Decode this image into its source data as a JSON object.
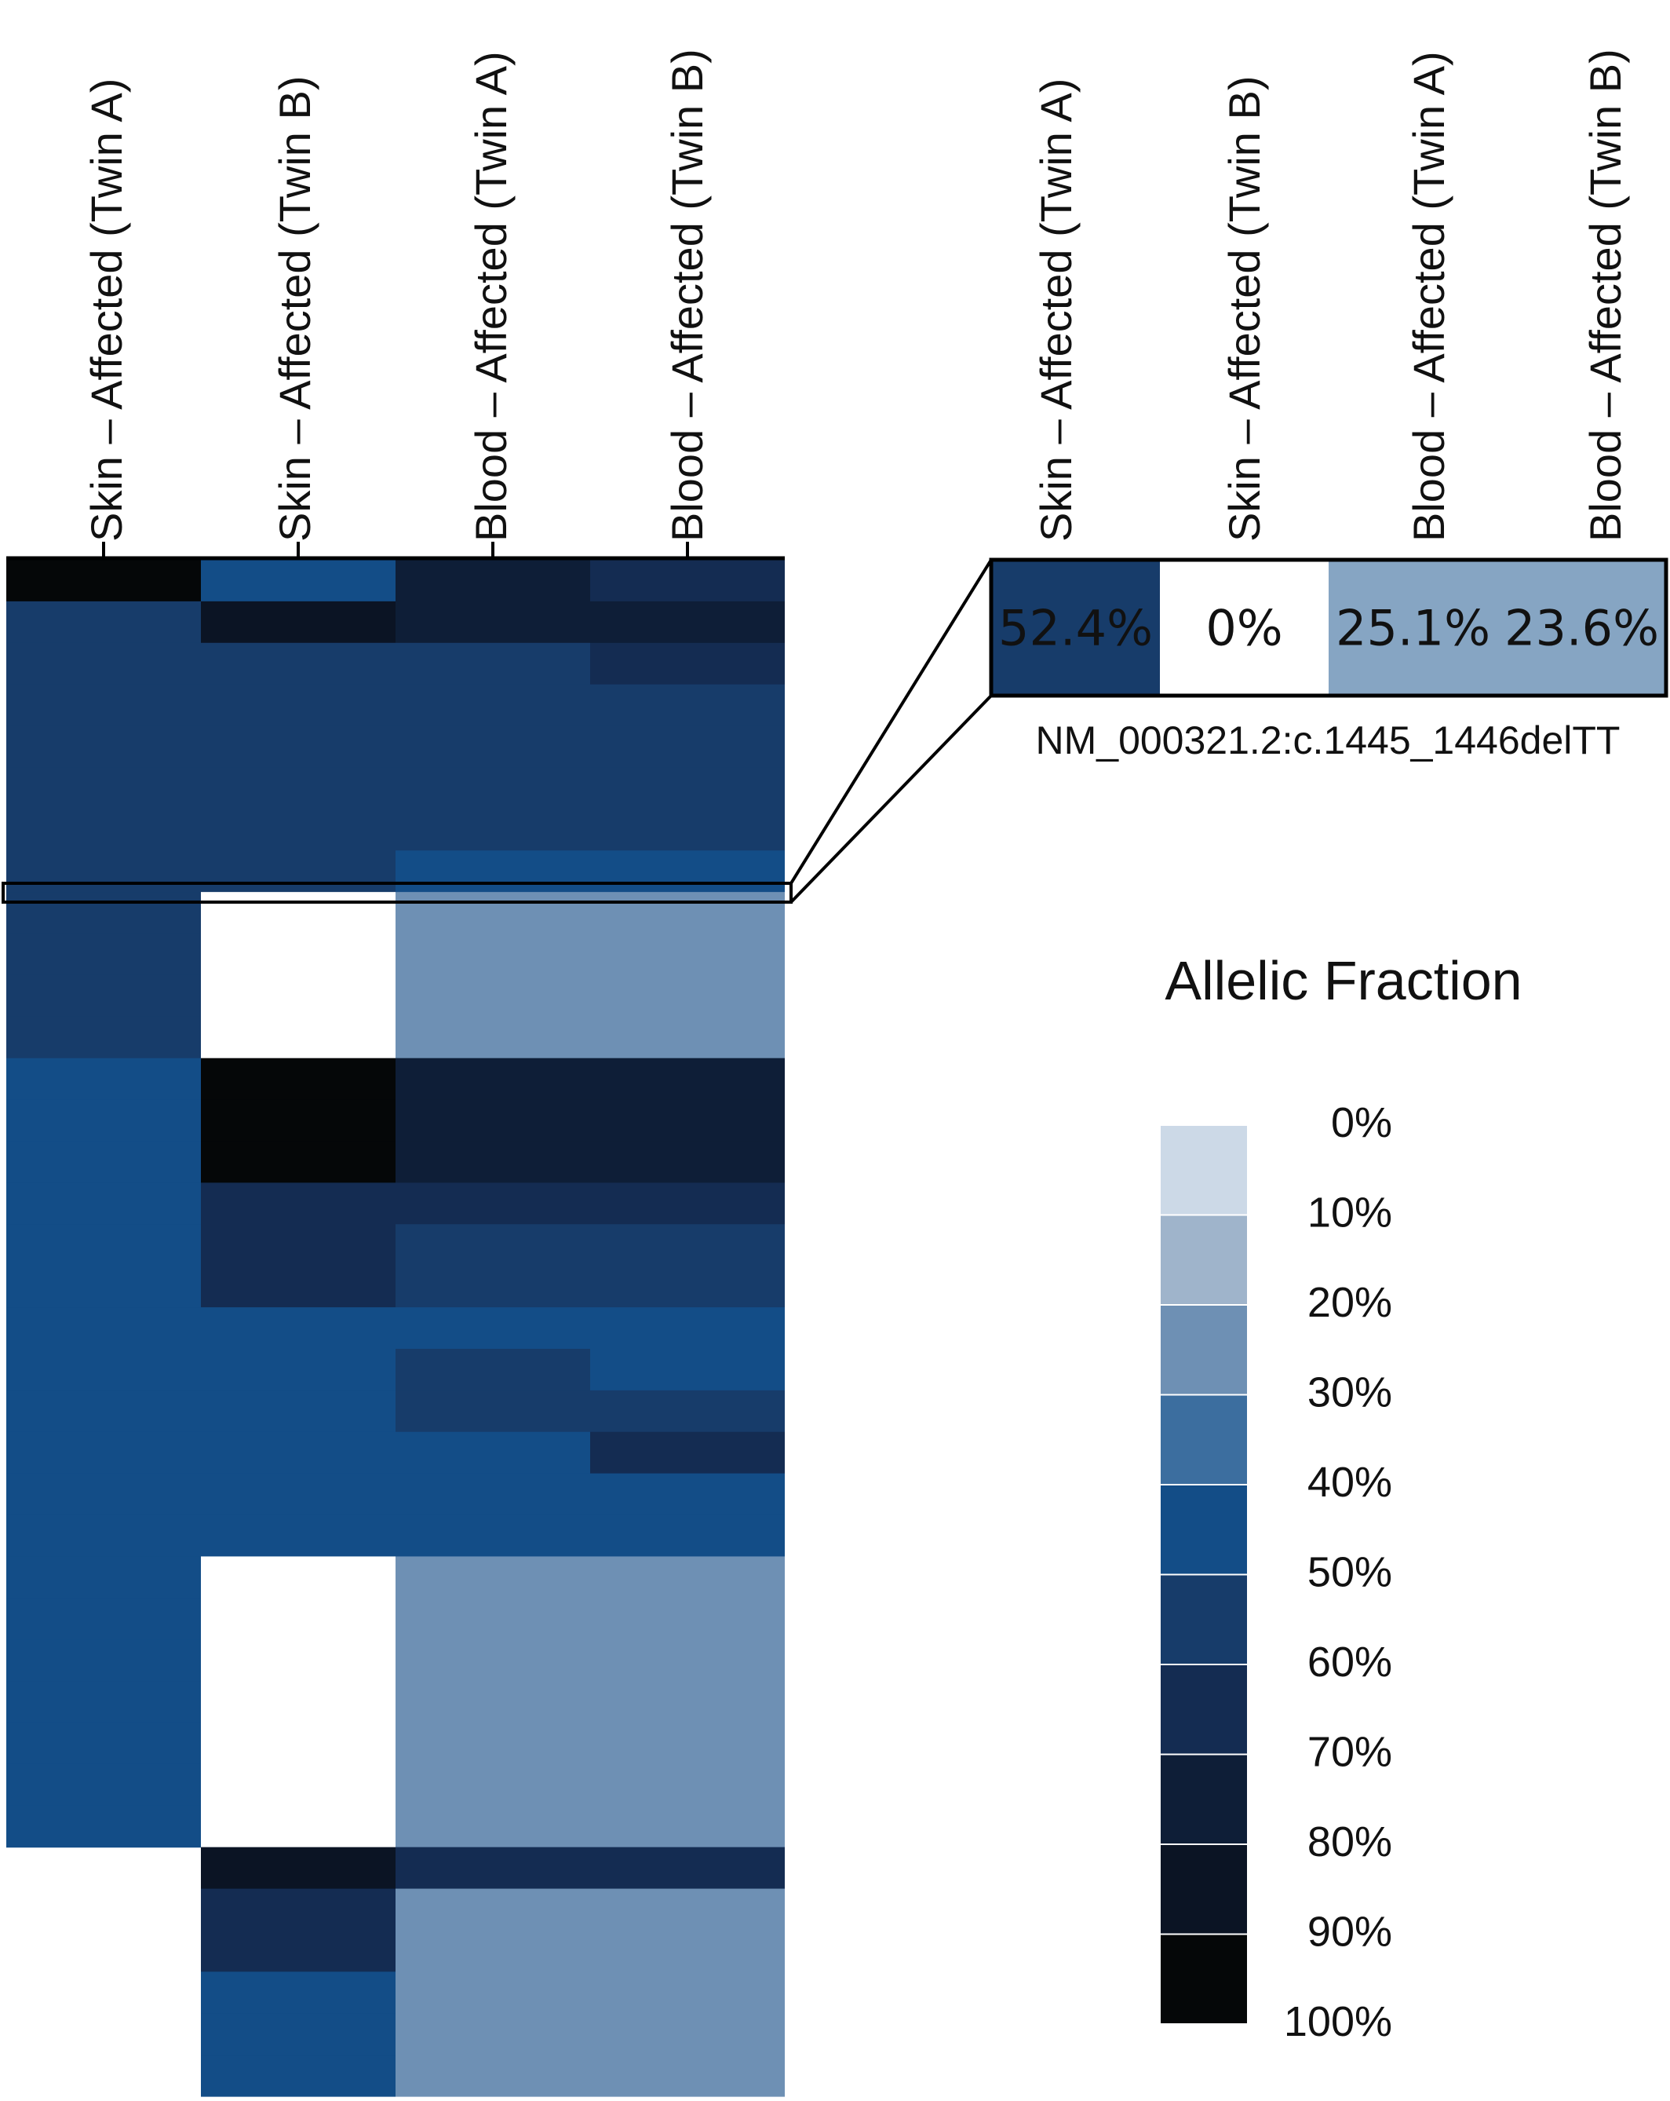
{
  "chart_data": {
    "type": "heatmap",
    "columns": [
      "Skin – Affected (Twin A)",
      "Skin – Affected (Twin B)",
      "Blood – Affected (Twin A)",
      "Blood – Affected (Twin B)"
    ],
    "value_unit": "allelic fraction (%)",
    "rows": [
      [
        100,
        50,
        75,
        70
      ],
      [
        60,
        90,
        80,
        80
      ],
      [
        60,
        60,
        55,
        65
      ],
      [
        60,
        60,
        55,
        55
      ],
      [
        60,
        55,
        60,
        60
      ],
      [
        60,
        55,
        55,
        55
      ],
      [
        60,
        55,
        55,
        60
      ],
      [
        60,
        55,
        50,
        50
      ],
      [
        60,
        0,
        27,
        27
      ],
      [
        60,
        0,
        27,
        27
      ],
      [
        60,
        0,
        27,
        27
      ],
      [
        60,
        0,
        27,
        27
      ],
      [
        50,
        95,
        80,
        80
      ],
      [
        50,
        95,
        80,
        80
      ],
      [
        50,
        95,
        80,
        80
      ],
      [
        50,
        65,
        65,
        65
      ],
      [
        50,
        65,
        55,
        60
      ],
      [
        50,
        65,
        55,
        55
      ],
      [
        50,
        50,
        50,
        50
      ],
      [
        50,
        50,
        60,
        50
      ],
      [
        50,
        50,
        60,
        55
      ],
      [
        50,
        50,
        50,
        65
      ],
      [
        50,
        50,
        50,
        50
      ],
      [
        50,
        50,
        50,
        50
      ],
      [
        50,
        0,
        27,
        27
      ],
      [
        50,
        0,
        27,
        27
      ],
      [
        50,
        0,
        27,
        27
      ],
      [
        50,
        0,
        27,
        27
      ],
      [
        50,
        0,
        27,
        27
      ],
      [
        50,
        0,
        27,
        27
      ],
      [
        50,
        0,
        27,
        27
      ],
      [
        null,
        90,
        70,
        65
      ],
      [
        null,
        65,
        27,
        27
      ],
      [
        null,
        65,
        27,
        27
      ],
      [
        null,
        50,
        27,
        27
      ],
      [
        null,
        50,
        27,
        27
      ],
      [
        null,
        50,
        27,
        27
      ]
    ],
    "highlighted_variant": {
      "label": "NM_000321.2:c.1445_1446delTT",
      "values": [
        52.4,
        0,
        25.1,
        23.6
      ],
      "display": [
        "52.4%",
        "0%",
        "25.1%",
        "23.6%"
      ]
    },
    "legend": {
      "title": "Allelic Fraction",
      "ticks": [
        "0%",
        "10%",
        "20%",
        "30%",
        "40%",
        "50%",
        "60%",
        "70%",
        "80%",
        "90%",
        "100%"
      ],
      "colors": [
        "#ccd9e7",
        "#9fb4cb",
        "#6e90b4",
        "#3c6e9f",
        "#134d87",
        "#173c6a",
        "#142c52",
        "#0e1e37",
        "#0b1424",
        "#050708"
      ]
    }
  }
}
